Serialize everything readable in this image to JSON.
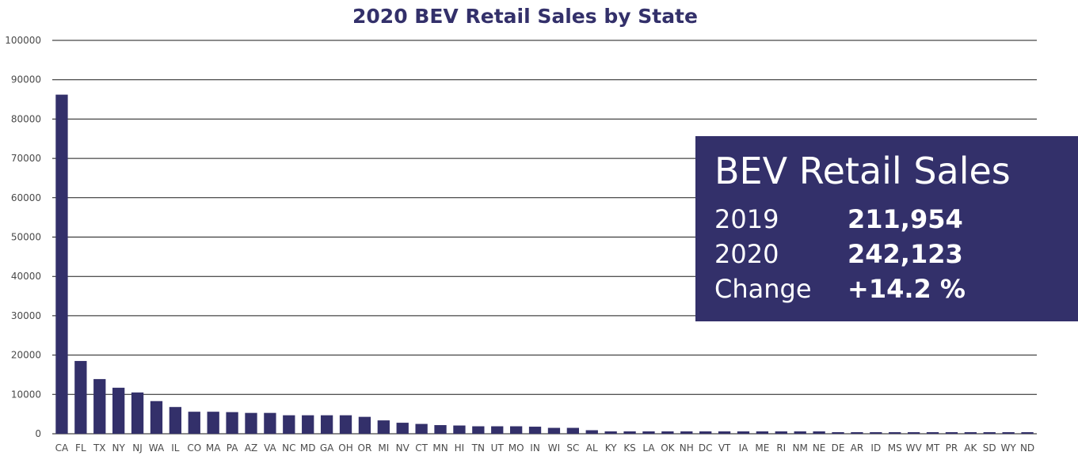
{
  "chart_data": {
    "type": "bar",
    "title": "2020 BEV Retail Sales by State",
    "xlabel": "",
    "ylabel": "",
    "ylim": [
      0,
      100000
    ],
    "yticks": [
      0,
      10000,
      20000,
      30000,
      40000,
      50000,
      60000,
      70000,
      80000,
      90000,
      100000
    ],
    "grid": true,
    "bar_color": "#33306a",
    "categories": [
      "CA",
      "FL",
      "TX",
      "NY",
      "NJ",
      "WA",
      "IL",
      "CO",
      "MA",
      "PA",
      "AZ",
      "VA",
      "NC",
      "MD",
      "GA",
      "OH",
      "OR",
      "MI",
      "NV",
      "CT",
      "MN",
      "HI",
      "TN",
      "UT",
      "MO",
      "IN",
      "WI",
      "SC",
      "AL",
      "KY",
      "KS",
      "LA",
      "OK",
      "NH",
      "DC",
      "VT",
      "IA",
      "ME",
      "RI",
      "NM",
      "NE",
      "DE",
      "AR",
      "ID",
      "MS",
      "WV",
      "MT",
      "PR",
      "AK",
      "SD",
      "WY",
      "ND"
    ],
    "values": [
      86200,
      18500,
      13900,
      11700,
      10500,
      8300,
      6800,
      5600,
      5600,
      5500,
      5300,
      5300,
      4700,
      4700,
      4700,
      4700,
      4300,
      3400,
      2800,
      2500,
      2200,
      2100,
      1900,
      1900,
      1900,
      1800,
      1500,
      1500,
      900,
      600,
      600,
      600,
      600,
      600,
      600,
      600,
      600,
      600,
      600,
      600,
      600,
      400,
      400,
      400,
      400,
      400,
      400,
      400,
      400,
      400,
      400,
      400
    ]
  },
  "summary": {
    "title": "BEV Retail Sales",
    "rows": [
      {
        "label": "2019",
        "value": "211,954"
      },
      {
        "label": "2020",
        "value": "242,123"
      },
      {
        "label": "Change",
        "value": "+14.2 %"
      }
    ],
    "background": "#33306a",
    "text_color": "#ffffff"
  }
}
